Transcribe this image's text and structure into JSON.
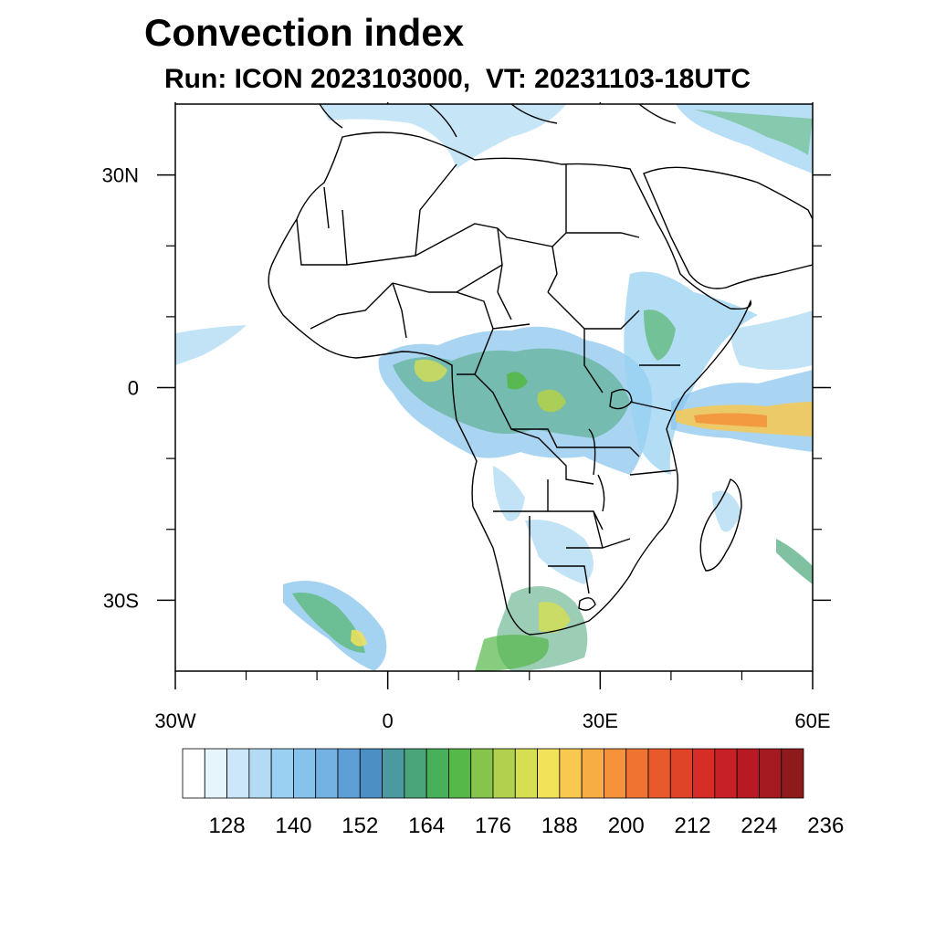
{
  "title": "Convection index",
  "subtitle": "Run: ICON 2023103000,  VT: 20231103-18UTC",
  "map": {
    "extent": {
      "lon_min": -30,
      "lon_max": 60,
      "lat_min": -40,
      "lat_max": 40
    },
    "lon_ticks": [
      {
        "value": -30,
        "label": "30W"
      },
      {
        "value": 0,
        "label": "0"
      },
      {
        "value": 30,
        "label": "30E"
      },
      {
        "value": 60,
        "label": "60E"
      }
    ],
    "lat_ticks": [
      {
        "value": 30,
        "label": "30N"
      },
      {
        "value": 0,
        "label": "0"
      },
      {
        "value": -30,
        "label": "30S"
      }
    ],
    "minor_lon_ticks": [
      -20,
      -10,
      10,
      20,
      40,
      50
    ],
    "minor_lat_ticks": [
      20,
      10,
      -10,
      -20
    ]
  },
  "colorbar": {
    "colors": [
      "#ffffff",
      "#e6f4fc",
      "#cce8f8",
      "#b3dcf4",
      "#9ad1f2",
      "#85c3ec",
      "#73b2e3",
      "#5e9fd6",
      "#4b8fc4",
      "#4a9aa0",
      "#4aa67a",
      "#48b058",
      "#55b848",
      "#86c44c",
      "#b0d04e",
      "#d6de52",
      "#f1e25a",
      "#f8c850",
      "#f8ad44",
      "#f5923a",
      "#ef7432",
      "#e85a2c",
      "#e04428",
      "#d62e27",
      "#c82027",
      "#b81a24",
      "#a51a20",
      "#8f1a1c"
    ],
    "labels": [
      "128",
      "140",
      "152",
      "164",
      "176",
      "188",
      "200",
      "212",
      "224",
      "236"
    ]
  },
  "colors": {
    "land_outline": "#000000",
    "frame": "#000000"
  }
}
